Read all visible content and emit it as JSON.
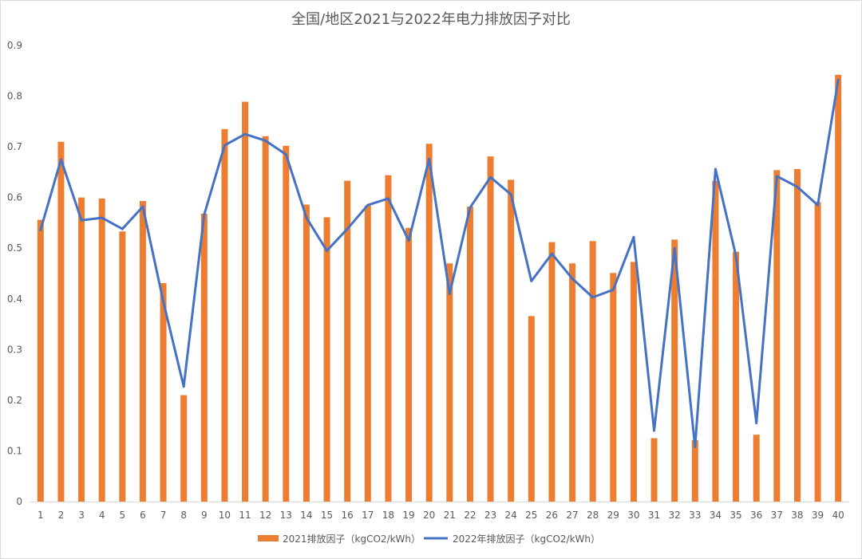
{
  "chart_data": {
    "type": "bar",
    "title": "全国/地区2021与2022年电力排放因子对比",
    "categories": [
      "1",
      "2",
      "3",
      "4",
      "5",
      "6",
      "7",
      "8",
      "9",
      "10",
      "11",
      "12",
      "13",
      "14",
      "15",
      "16",
      "17",
      "18",
      "19",
      "20",
      "21",
      "22",
      "23",
      "24",
      "25",
      "26",
      "27",
      "28",
      "29",
      "30",
      "31",
      "32",
      "33",
      "34",
      "35",
      "36",
      "37",
      "38",
      "39",
      "40"
    ],
    "series": [
      {
        "name": "2021排放因子（kgCO2/kWh）",
        "kind": "bar",
        "color": "#ED7D31",
        "values": [
          0.556,
          0.71,
          0.6,
          0.598,
          0.533,
          0.593,
          0.431,
          0.21,
          0.568,
          0.735,
          0.789,
          0.721,
          0.702,
          0.586,
          0.561,
          0.633,
          0.584,
          0.644,
          0.54,
          0.706,
          0.47,
          0.582,
          0.681,
          0.635,
          0.366,
          0.512,
          0.47,
          0.514,
          0.451,
          0.473,
          0.125,
          0.517,
          0.121,
          0.633,
          0.493,
          0.132,
          0.654,
          0.656,
          0.591,
          0.842
        ]
      },
      {
        "name": "2022年排放因子（kgCO2/kWh）",
        "kind": "line",
        "color": "#4472C4",
        "values": [
          0.536,
          0.675,
          0.555,
          0.56,
          0.538,
          0.582,
          0.395,
          0.227,
          0.566,
          0.703,
          0.725,
          0.712,
          0.685,
          0.56,
          0.495,
          0.538,
          0.585,
          0.598,
          0.515,
          0.676,
          0.41,
          0.58,
          0.64,
          0.606,
          0.435,
          0.489,
          0.44,
          0.403,
          0.418,
          0.522,
          0.14,
          0.5,
          0.108,
          0.656,
          0.485,
          0.155,
          0.642,
          0.621,
          0.585,
          0.832
        ]
      }
    ],
    "ylim": [
      0,
      0.9
    ],
    "yticks": [
      "0",
      "0.1",
      "0.2",
      "0.3",
      "0.4",
      "0.5",
      "0.6",
      "0.7",
      "0.8",
      "0.9"
    ],
    "grid": false,
    "legend": "bottom"
  }
}
